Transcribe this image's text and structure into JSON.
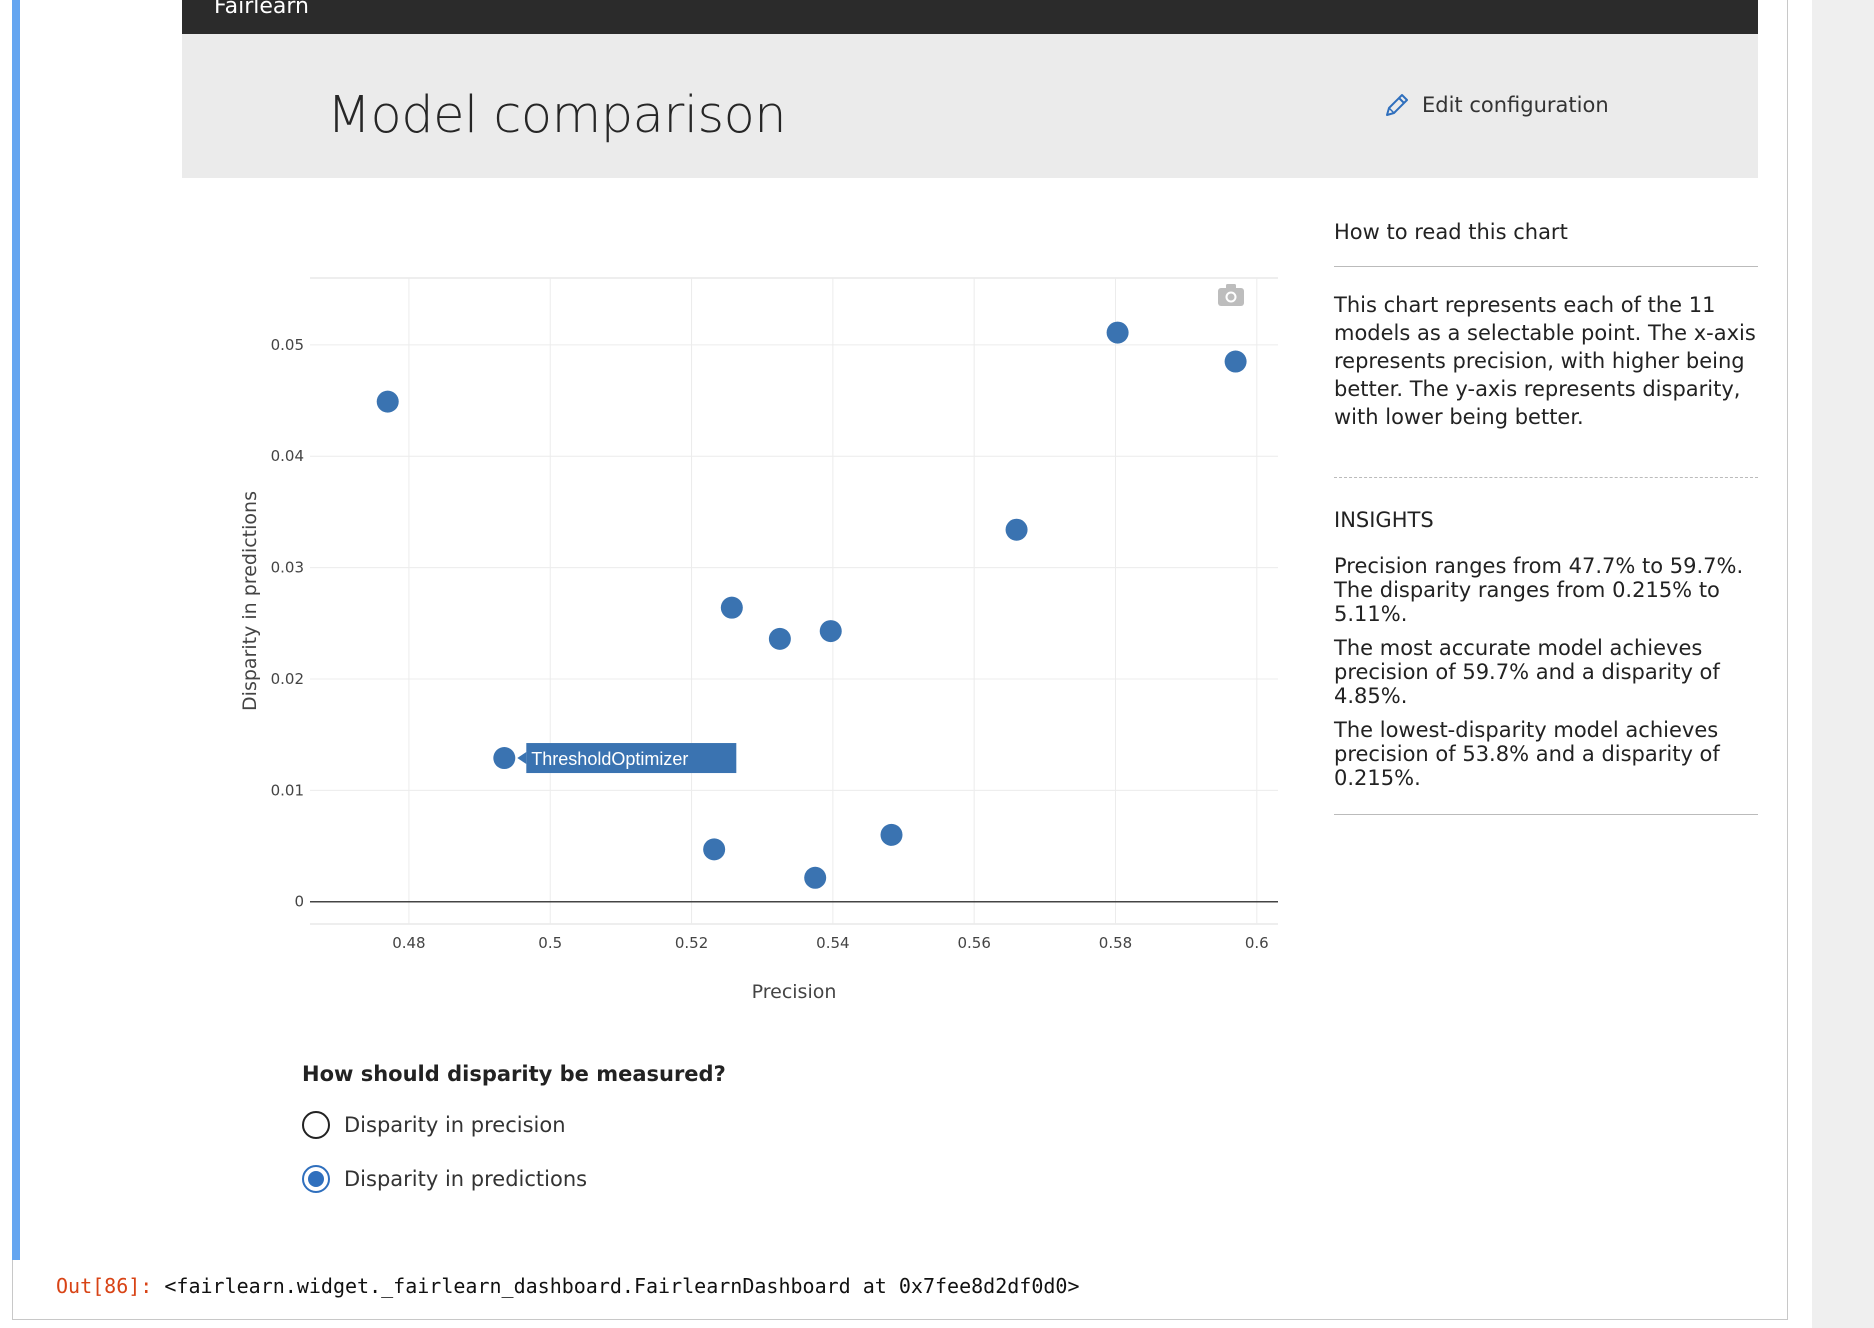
{
  "app": {
    "brand": "Fairlearn"
  },
  "header": {
    "title": "Model comparison",
    "edit_label": "Edit configuration"
  },
  "chart_data": {
    "type": "scatter",
    "xlabel": "Precision",
    "ylabel": "Disparity in predictions",
    "xlim": [
      0.466,
      0.603
    ],
    "ylim": [
      -0.002,
      0.056
    ],
    "x_ticks": [
      "0.48",
      "0.5",
      "0.52",
      "0.54",
      "0.56",
      "0.58",
      "0.6"
    ],
    "x_tick_values": [
      0.48,
      0.5,
      0.52,
      0.54,
      0.56,
      0.58,
      0.6
    ],
    "y_ticks": [
      "0",
      "0.01",
      "0.02",
      "0.03",
      "0.04",
      "0.05"
    ],
    "y_tick_values": [
      0,
      0.01,
      0.02,
      0.03,
      0.04,
      0.05
    ],
    "grid": true,
    "marker_color": "#3a73b1",
    "points": [
      {
        "x": 0.477,
        "y": 0.0449
      },
      {
        "x": 0.4935,
        "y": 0.0129,
        "label": "ThresholdOptimizer"
      },
      {
        "x": 0.5232,
        "y": 0.0047
      },
      {
        "x": 0.5257,
        "y": 0.0264
      },
      {
        "x": 0.5325,
        "y": 0.0236
      },
      {
        "x": 0.5375,
        "y": 0.00215
      },
      {
        "x": 0.5397,
        "y": 0.0243
      },
      {
        "x": 0.5483,
        "y": 0.006
      },
      {
        "x": 0.566,
        "y": 0.0334
      },
      {
        "x": 0.5803,
        "y": 0.0511
      },
      {
        "x": 0.597,
        "y": 0.0485
      }
    ]
  },
  "side": {
    "howto_title": "How to read this chart",
    "description": "This chart represents each of the 11 models as a selectable point. The x-axis represents precision, with higher being better. The y-axis represents disparity, with lower being better.",
    "insights_title": "INSIGHTS",
    "insights": [
      "Precision ranges from 47.7% to 59.7%. The disparity ranges from 0.215% to 5.11%.",
      "The most accurate model achieves precision of 59.7% and a disparity of 4.85%.",
      "The lowest-disparity model achieves precision of 53.8% and a disparity of 0.215%."
    ]
  },
  "disparity_question": {
    "title": "How should disparity be measured?",
    "options": [
      {
        "label": "Disparity in precision",
        "checked": false
      },
      {
        "label": "Disparity in predictions",
        "checked": true
      }
    ]
  },
  "output": {
    "prompt": "Out[86]:",
    "text": "<fairlearn.widget._fairlearn_dashboard.FairlearnDashboard at 0x7fee8d2df0d0>"
  }
}
